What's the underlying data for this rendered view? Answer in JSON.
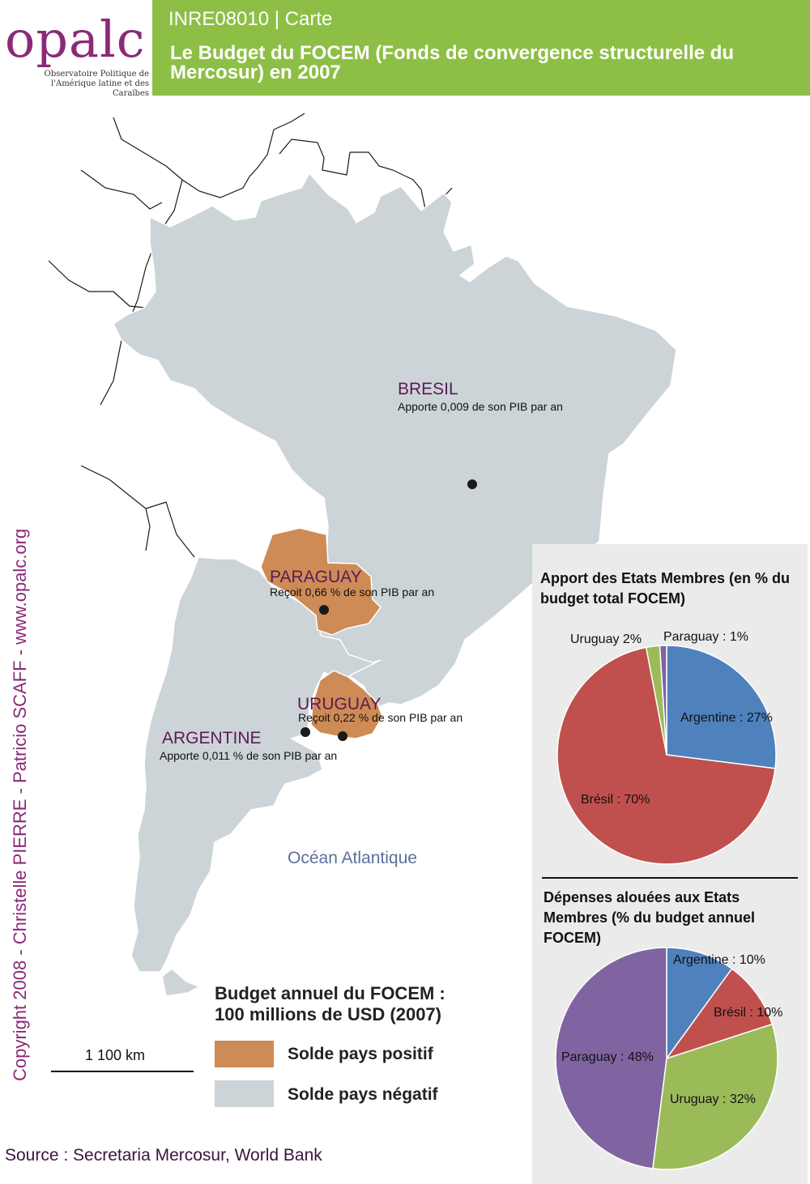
{
  "header": {
    "logo_word": "opalc",
    "logo_subtitle_1": "Observatoire Politique de",
    "logo_subtitle_2": "l'Amérique latine et des Caraïbes",
    "code": "INRE08010 | Carte",
    "title": "Le Budget du FOCEM (Fonds de convergence structurelle du Mercosur) en 2007"
  },
  "map": {
    "countries": [
      {
        "key": "bresil",
        "name": "BRESIL",
        "note": "Apporte 0,009 de son PIB par an",
        "solde": "negatif"
      },
      {
        "key": "paraguay",
        "name": "PARAGUAY",
        "note": "Reçoit 0,66 % de son PIB par an",
        "solde": "positif"
      },
      {
        "key": "uruguay",
        "name": "URUGUAY",
        "note": "Reçoit 0,22 % de son PIB par an",
        "solde": "positif"
      },
      {
        "key": "argentine",
        "name": "ARGENTINE",
        "note": "Apporte 0,011 % de son PIB par an",
        "solde": "negatif"
      }
    ],
    "ocean_label": "Océan Atlantique",
    "colors": {
      "positif": "#ce8b55",
      "negatif": "#ccd4d8",
      "border": "#ffffff",
      "outline": "#1a1a1a",
      "country_name": "#5b1a55"
    }
  },
  "legend": {
    "title_line1": "Budget annuel du FOCEM :",
    "title_line2": "100 millions de USD (2007)",
    "positive_label": "Solde pays positif",
    "negative_label": "Solde pays négatif"
  },
  "scale": {
    "label": "1 100 km"
  },
  "credit": "Copyright 2008 - Christelle PIERRE - Patricio SCAFF - www.opalc.org",
  "source": "Source : Secretaria Mercosur, World Bank",
  "chart_data": [
    {
      "type": "pie",
      "title": "Apport des Etats Membres (en % du budget total FOCEM)",
      "categories": [
        "Argentine",
        "Brésil",
        "Uruguay",
        "Paraguay"
      ],
      "values": [
        27,
        70,
        2,
        1
      ],
      "labels": [
        "Argentine : 27%",
        "Brésil : 70%",
        "Uruguay 2%",
        "Paraguay : 1%"
      ],
      "colors": [
        "#4f81bd",
        "#c0504d",
        "#9bbb59",
        "#8064a2"
      ]
    },
    {
      "type": "pie",
      "title": "Dépenses alouées aux Etats Membres (% du budget annuel FOCEM)",
      "categories": [
        "Argentine",
        "Brésil",
        "Uruguay",
        "Paraguay"
      ],
      "values": [
        10,
        10,
        32,
        48
      ],
      "labels": [
        "Argentine : 10%",
        "Brésil : 10%",
        "Uruguay : 32%",
        "Paraguay : 48%"
      ],
      "colors": [
        "#4f81bd",
        "#c0504d",
        "#9bbb59",
        "#8064a2"
      ]
    }
  ]
}
